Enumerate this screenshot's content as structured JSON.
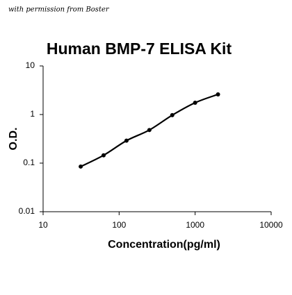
{
  "chart_data": {
    "type": "line",
    "title": "Human BMP-7 ELISA Kit",
    "annotation": "with permission from Boster",
    "x_label": "Concentration(pg/ml)",
    "y_label": "O.D.",
    "x": [
      31.25,
      62.5,
      125,
      250,
      500,
      1000,
      2000
    ],
    "values": [
      0.085,
      0.145,
      0.29,
      0.48,
      0.97,
      1.75,
      2.6
    ],
    "color": "#000000",
    "xscale": "log",
    "yscale": "log",
    "xlim": [
      10,
      10000
    ],
    "xticks": [
      10,
      100,
      1000,
      10000
    ],
    "ylim": [
      0.01,
      10
    ],
    "yticks": [
      0.01,
      0.1,
      1,
      10
    ],
    "grid": false
  }
}
